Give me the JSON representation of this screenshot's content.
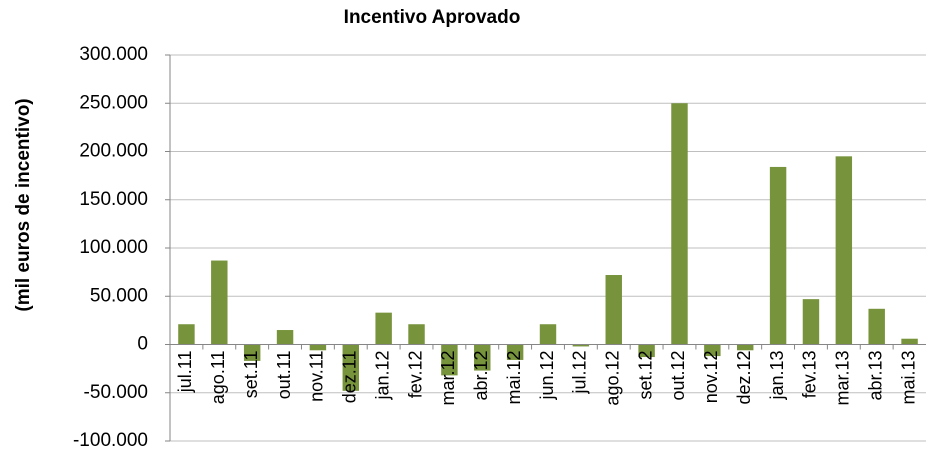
{
  "chart_data": {
    "type": "bar",
    "title": "Incentivo Aprovado",
    "y_label": "(mil euros de incentivo)",
    "categories": [
      "jul.11",
      "ago.11",
      "set.11",
      "out.11",
      "nov.11",
      "dez.11",
      "jan.12",
      "fev.12",
      "mar.12",
      "abr.12",
      "mai.12",
      "jun.12",
      "jul.12",
      "ago.12",
      "set.12",
      "out.12",
      "nov.12",
      "dez.12",
      "jan.13",
      "fev.13",
      "mar.13",
      "abr.13",
      "mai.13"
    ],
    "values": [
      21000,
      87000,
      -17000,
      15000,
      -6000,
      -48000,
      33000,
      21000,
      -32000,
      -27000,
      -16000,
      21000,
      -2000,
      72000,
      -13000,
      250000,
      -12000,
      -6000,
      184000,
      47000,
      195000,
      37000,
      6000
    ],
    "color": "#77933c",
    "ylim": [
      -100000,
      300000
    ],
    "yticks": [
      {
        "value": -100000,
        "label": "-100.000"
      },
      {
        "value": -50000,
        "label": "-50.000"
      },
      0,
      {
        "value": 50000,
        "label": "50.000"
      },
      {
        "value": 100000,
        "label": "100.000"
      },
      {
        "value": 150000,
        "label": "150.000"
      },
      {
        "value": 200000,
        "label": "200.000"
      },
      {
        "value": 250000,
        "label": "250.000"
      },
      {
        "value": 300000,
        "label": "300.000"
      }
    ],
    "grid": true
  }
}
